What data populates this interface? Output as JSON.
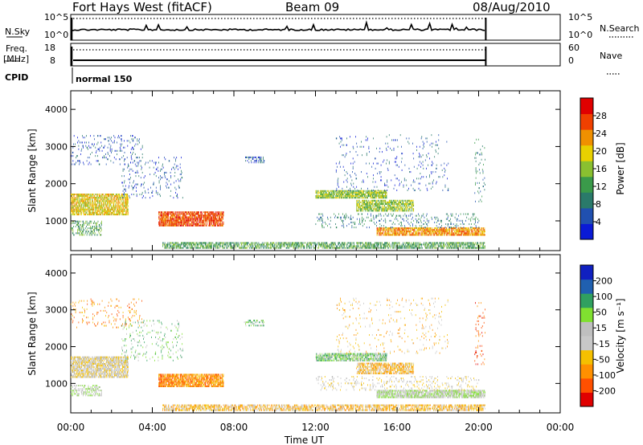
{
  "header": {
    "station": "Fort Hays West (fitACF)",
    "beam": "Beam 09",
    "date": "08/Aug/2010"
  },
  "status_panels": {
    "noise": {
      "left_label": "N.Sky",
      "right_label": "N.Search",
      "left_ticks": [
        "10^5",
        "10^0"
      ],
      "right_ticks": [
        "10^5",
        "10^0"
      ]
    },
    "freq": {
      "left_label_1": "Freq.",
      "left_label_2": "[MHz]",
      "right_label": "Nave",
      "left_ticks": [
        "18",
        "8"
      ],
      "right_ticks": [
        "60",
        "0"
      ]
    },
    "cpid": {
      "label": "CPID",
      "value": "normal 150"
    }
  },
  "colors": {
    "power": [
      "#0a1ad6",
      "#2050b0",
      "#2a7a6a",
      "#3a9a4a",
      "#8ac030",
      "#e8d000",
      "#f09000",
      "#f04000",
      "#e00000"
    ],
    "velocity": [
      "#e00000",
      "#ff5000",
      "#ff9000",
      "#f5c000",
      "#c8c8c8",
      "#bfbfbf",
      "#80e030",
      "#30a060",
      "#2060b0",
      "#1020c0"
    ]
  },
  "chart_data": [
    {
      "type": "heatmap",
      "name": "power",
      "ylabel": "Slant Range [km]",
      "yticks": [
        1000,
        2000,
        3000,
        4000
      ],
      "ylim": [
        200,
        4500
      ],
      "xlim": [
        0,
        24
      ],
      "data_extent_hours": [
        0,
        20.35
      ],
      "colorbar_label": "Power [dB]",
      "colorbar_ticks": [
        "4",
        "8",
        "12",
        "16",
        "20",
        "24",
        "28"
      ],
      "colorbar_range": [
        0,
        32
      ],
      "regions": [
        {
          "t": [
            0.0,
            2.8
          ],
          "r": [
            1150,
            1700
          ],
          "lvl": 5,
          "d": 0.7
        },
        {
          "t": [
            0.0,
            1.5
          ],
          "r": [
            600,
            1000
          ],
          "lvl": 3,
          "d": 0.3
        },
        {
          "t": [
            0.0,
            3.5
          ],
          "r": [
            2500,
            3300
          ],
          "lvl": 1,
          "d": 0.07
        },
        {
          "t": [
            4.3,
            7.5
          ],
          "r": [
            850,
            1250
          ],
          "lvl": 7,
          "d": 0.75
        },
        {
          "t": [
            2.5,
            5.5
          ],
          "r": [
            1600,
            2700
          ],
          "lvl": 1,
          "d": 0.06
        },
        {
          "t": [
            4.5,
            20.3
          ],
          "r": [
            250,
            400
          ],
          "lvl": 3,
          "d": 0.55
        },
        {
          "t": [
            12.0,
            15.5
          ],
          "r": [
            1600,
            1800
          ],
          "lvl": 4,
          "d": 0.75
        },
        {
          "t": [
            14.0,
            16.8
          ],
          "r": [
            1250,
            1550
          ],
          "lvl": 4,
          "d": 0.65
        },
        {
          "t": [
            15.0,
            20.3
          ],
          "r": [
            600,
            800
          ],
          "lvl": 6,
          "d": 0.75
        },
        {
          "t": [
            12.0,
            20.0
          ],
          "r": [
            800,
            1200
          ],
          "lvl": 2,
          "d": 0.12
        },
        {
          "t": [
            8.5,
            9.5
          ],
          "r": [
            2550,
            2700
          ],
          "lvl": 1,
          "d": 0.35
        },
        {
          "t": [
            13.0,
            18.5
          ],
          "r": [
            1800,
            3300
          ],
          "lvl": 1,
          "d": 0.04
        },
        {
          "t": [
            19.8,
            20.3
          ],
          "r": [
            1500,
            3200
          ],
          "lvl": 2,
          "d": 0.07
        }
      ]
    },
    {
      "type": "heatmap",
      "name": "velocity",
      "ylabel": "Slant Range [km]",
      "yticks": [
        1000,
        2000,
        3000,
        4000
      ],
      "ylim": [
        200,
        4500
      ],
      "xlim": [
        0,
        24
      ],
      "data_extent_hours": [
        0,
        20.35
      ],
      "colorbar_label": "Velocity [m s⁻¹]",
      "colorbar_ticks": [
        "-200",
        "-100",
        "-50",
        "-15",
        "15",
        "50",
        "100",
        "200"
      ],
      "colorbar_range": [
        -250,
        250
      ],
      "xticks": [
        "00:00",
        "04:00",
        "08:00",
        "12:00",
        "16:00",
        "20:00",
        "00:00"
      ],
      "xlabel": "Time UT",
      "regions": [
        {
          "t": [
            0.0,
            2.8
          ],
          "r": [
            1150,
            1700
          ],
          "lvl": 4,
          "d": 0.7
        },
        {
          "t": [
            0.0,
            1.5
          ],
          "r": [
            650,
            950
          ],
          "lvl": 5,
          "d": 0.35
        },
        {
          "t": [
            0.0,
            3.5
          ],
          "r": [
            2500,
            3300
          ],
          "lvl": 2,
          "d": 0.07
        },
        {
          "t": [
            4.3,
            7.5
          ],
          "r": [
            900,
            1250
          ],
          "lvl": 2,
          "d": 0.75
        },
        {
          "t": [
            2.5,
            5.5
          ],
          "r": [
            1600,
            2700
          ],
          "lvl": 6,
          "d": 0.06
        },
        {
          "t": [
            4.5,
            20.3
          ],
          "r": [
            250,
            400
          ],
          "lvl": 3,
          "d": 0.55
        },
        {
          "t": [
            12.0,
            15.5
          ],
          "r": [
            1600,
            1800
          ],
          "lvl": 6,
          "d": 0.65
        },
        {
          "t": [
            14.0,
            16.8
          ],
          "r": [
            1250,
            1550
          ],
          "lvl": 3,
          "d": 0.6
        },
        {
          "t": [
            15.0,
            20.3
          ],
          "r": [
            600,
            800
          ],
          "lvl": 5,
          "d": 0.75
        },
        {
          "t": [
            12.0,
            20.0
          ],
          "r": [
            800,
            1200
          ],
          "lvl": 4,
          "d": 0.12
        },
        {
          "t": [
            8.5,
            9.5
          ],
          "r": [
            2550,
            2700
          ],
          "lvl": 6,
          "d": 0.35
        },
        {
          "t": [
            13.0,
            18.5
          ],
          "r": [
            1800,
            3300
          ],
          "lvl": 3,
          "d": 0.04
        },
        {
          "t": [
            19.8,
            20.3
          ],
          "r": [
            1500,
            3200
          ],
          "lvl": 1,
          "d": 0.07
        }
      ]
    }
  ]
}
